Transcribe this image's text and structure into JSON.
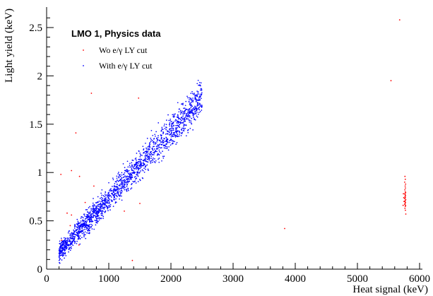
{
  "chart_data": {
    "type": "scatter",
    "title": "LMO 1, Physics data",
    "xlabel": "Heat signal (keV)",
    "ylabel": "Light yield (keV)",
    "xlim": [
      0,
      6000
    ],
    "ylim": [
      0,
      2.7
    ],
    "xticks": [
      0,
      1000,
      2000,
      3000,
      4000,
      5000,
      6000
    ],
    "xtick_labels": [
      "0",
      "1000",
      "2000",
      "3000",
      "4000",
      "5000",
      "6000"
    ],
    "yticks": [
      0,
      0.5,
      1,
      1.5,
      2,
      2.5
    ],
    "ytick_labels": [
      "0",
      "0.5",
      "1",
      "1.5",
      "2",
      "2.5"
    ],
    "grid": false,
    "legend_position": "top-left",
    "series": [
      {
        "name": "Wo e/γ LY cut",
        "color": "#ff0000",
        "marker": "dot",
        "points": [
          [
            5680,
            2.58
          ],
          [
            5540,
            1.95
          ],
          [
            720,
            1.82
          ],
          [
            1480,
            1.77
          ],
          [
            470,
            1.41
          ],
          [
            230,
            0.98
          ],
          [
            400,
            1.02
          ],
          [
            530,
            0.96
          ],
          [
            760,
            0.86
          ],
          [
            620,
            0.69
          ],
          [
            330,
            0.58
          ],
          [
            400,
            0.56
          ],
          [
            380,
            0.45
          ],
          [
            3830,
            0.42
          ],
          [
            1380,
            0.09
          ],
          [
            240,
            0.3
          ],
          [
            300,
            0.27
          ],
          [
            520,
            0.25
          ],
          [
            1500,
            0.68
          ],
          [
            1250,
            0.6
          ],
          [
            5765,
            0.96
          ],
          [
            5770,
            0.93
          ],
          [
            5760,
            0.9
          ],
          [
            5775,
            0.88
          ],
          [
            5768,
            0.86
          ],
          [
            5772,
            0.84
          ],
          [
            5764,
            0.82
          ],
          [
            5770,
            0.8
          ],
          [
            5776,
            0.79
          ],
          [
            5762,
            0.78
          ],
          [
            5768,
            0.77
          ],
          [
            5774,
            0.76
          ],
          [
            5766,
            0.75
          ],
          [
            5771,
            0.74
          ],
          [
            5760,
            0.73
          ],
          [
            5777,
            0.72
          ],
          [
            5769,
            0.71
          ],
          [
            5763,
            0.7
          ],
          [
            5773,
            0.69
          ],
          [
            5767,
            0.68
          ],
          [
            5761,
            0.67
          ],
          [
            5775,
            0.66
          ],
          [
            5770,
            0.65
          ],
          [
            5765,
            0.63
          ],
          [
            5772,
            0.61
          ],
          [
            5740,
            0.78
          ],
          [
            5745,
            0.74
          ],
          [
            5750,
            0.7
          ],
          [
            5735,
            0.66
          ],
          [
            5778,
            0.57
          ]
        ]
      },
      {
        "name": "With e/γ LY cut",
        "color": "#0000ff",
        "marker": "dot",
        "x_range": [
          200,
          2500
        ],
        "trend": "y ≈ 0.0007·x + 0.03",
        "points": [
          [
            200,
            0.14
          ],
          [
            400,
            0.29
          ],
          [
            600,
            0.44
          ],
          [
            800,
            0.58
          ],
          [
            1000,
            0.72
          ],
          [
            1200,
            0.86
          ],
          [
            1400,
            1.0
          ],
          [
            1600,
            1.14
          ],
          [
            1800,
            1.29
          ],
          [
            2000,
            1.43
          ],
          [
            2200,
            1.57
          ],
          [
            2400,
            1.71
          ],
          [
            2480,
            1.76
          ]
        ],
        "n_points": 1800
      }
    ]
  }
}
